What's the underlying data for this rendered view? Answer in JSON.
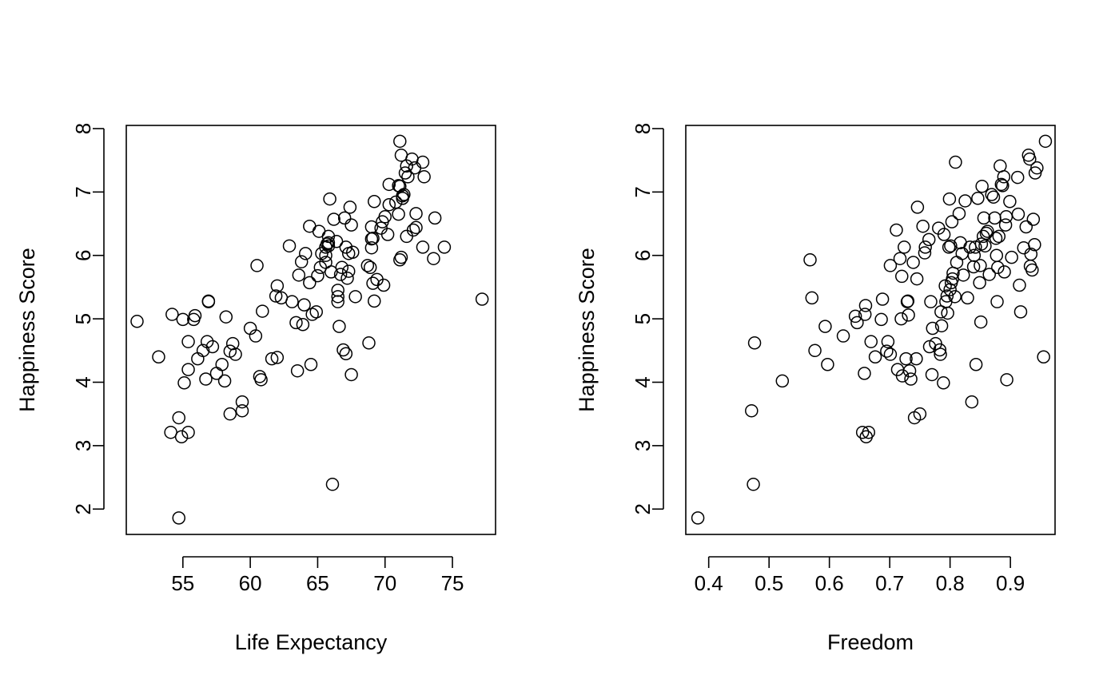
{
  "chart_data": [
    {
      "type": "scatter",
      "xlabel": "Life Expectancy",
      "ylabel": "Happiness Score",
      "xlim": [
        50.8,
        78.2
      ],
      "ylim": [
        1.6,
        8.05
      ],
      "x_ticks": [
        55,
        60,
        65,
        70,
        75
      ],
      "y_ticks": [
        2,
        3,
        4,
        5,
        6,
        7,
        8
      ],
      "x_tick_labels": [
        "55",
        "60",
        "65",
        "70",
        "75"
      ],
      "y_tick_labels": [
        "2",
        "3",
        "4",
        "5",
        "6",
        "7",
        "8"
      ],
      "grid": false,
      "points": [
        {
          "x": 51.6,
          "y": 4.96
        },
        {
          "x": 53.2,
          "y": 4.4
        },
        {
          "x": 54.2,
          "y": 5.07
        },
        {
          "x": 54.1,
          "y": 3.21
        },
        {
          "x": 54.7,
          "y": 3.44
        },
        {
          "x": 54.9,
          "y": 3.14
        },
        {
          "x": 54.7,
          "y": 1.86
        },
        {
          "x": 55.0,
          "y": 4.99
        },
        {
          "x": 55.1,
          "y": 3.99
        },
        {
          "x": 55.4,
          "y": 4.64
        },
        {
          "x": 55.4,
          "y": 3.21
        },
        {
          "x": 55.4,
          "y": 4.2
        },
        {
          "x": 55.8,
          "y": 4.99
        },
        {
          "x": 55.9,
          "y": 5.05
        },
        {
          "x": 56.1,
          "y": 4.37
        },
        {
          "x": 56.5,
          "y": 4.5
        },
        {
          "x": 56.7,
          "y": 4.05
        },
        {
          "x": 56.8,
          "y": 4.64
        },
        {
          "x": 56.9,
          "y": 5.27
        },
        {
          "x": 56.9,
          "y": 5.28
        },
        {
          "x": 57.2,
          "y": 4.56
        },
        {
          "x": 57.5,
          "y": 4.14
        },
        {
          "x": 57.9,
          "y": 4.28
        },
        {
          "x": 58.1,
          "y": 4.02
        },
        {
          "x": 58.2,
          "y": 5.03
        },
        {
          "x": 58.5,
          "y": 4.49
        },
        {
          "x": 58.5,
          "y": 3.5
        },
        {
          "x": 58.7,
          "y": 4.61
        },
        {
          "x": 58.9,
          "y": 4.44
        },
        {
          "x": 59.4,
          "y": 3.69
        },
        {
          "x": 59.4,
          "y": 3.55
        },
        {
          "x": 60.0,
          "y": 4.85
        },
        {
          "x": 60.4,
          "y": 4.73
        },
        {
          "x": 60.5,
          "y": 5.84
        },
        {
          "x": 60.7,
          "y": 4.09
        },
        {
          "x": 60.8,
          "y": 4.04
        },
        {
          "x": 60.9,
          "y": 5.12
        },
        {
          "x": 61.6,
          "y": 4.37
        },
        {
          "x": 61.9,
          "y": 5.36
        },
        {
          "x": 62.0,
          "y": 4.39
        },
        {
          "x": 62.0,
          "y": 5.52
        },
        {
          "x": 62.3,
          "y": 5.33
        },
        {
          "x": 62.9,
          "y": 6.15
        },
        {
          "x": 63.1,
          "y": 5.27
        },
        {
          "x": 63.4,
          "y": 4.94
        },
        {
          "x": 63.5,
          "y": 4.18
        },
        {
          "x": 63.6,
          "y": 5.69
        },
        {
          "x": 63.8,
          "y": 5.9
        },
        {
          "x": 63.9,
          "y": 4.91
        },
        {
          "x": 64.0,
          "y": 5.22
        },
        {
          "x": 64.1,
          "y": 6.03
        },
        {
          "x": 64.4,
          "y": 6.46
        },
        {
          "x": 64.4,
          "y": 5.57
        },
        {
          "x": 64.5,
          "y": 4.28
        },
        {
          "x": 64.6,
          "y": 5.07
        },
        {
          "x": 64.9,
          "y": 5.11
        },
        {
          "x": 65.0,
          "y": 5.68
        },
        {
          "x": 65.1,
          "y": 6.38
        },
        {
          "x": 65.2,
          "y": 5.81
        },
        {
          "x": 65.3,
          "y": 6.03
        },
        {
          "x": 65.6,
          "y": 5.89
        },
        {
          "x": 65.6,
          "y": 6.13
        },
        {
          "x": 65.6,
          "y": 6.0
        },
        {
          "x": 65.7,
          "y": 6.18
        },
        {
          "x": 65.8,
          "y": 6.3
        },
        {
          "x": 65.8,
          "y": 6.2
        },
        {
          "x": 65.8,
          "y": 6.15
        },
        {
          "x": 65.9,
          "y": 6.89
        },
        {
          "x": 66.0,
          "y": 5.74
        },
        {
          "x": 66.1,
          "y": 2.39
        },
        {
          "x": 66.2,
          "y": 6.57
        },
        {
          "x": 66.4,
          "y": 6.22
        },
        {
          "x": 66.5,
          "y": 5.45
        },
        {
          "x": 66.5,
          "y": 5.27
        },
        {
          "x": 66.5,
          "y": 5.35
        },
        {
          "x": 66.6,
          "y": 4.88
        },
        {
          "x": 66.7,
          "y": 5.7
        },
        {
          "x": 66.8,
          "y": 5.81
        },
        {
          "x": 66.9,
          "y": 4.51
        },
        {
          "x": 67.0,
          "y": 6.59
        },
        {
          "x": 67.1,
          "y": 4.45
        },
        {
          "x": 67.1,
          "y": 6.13
        },
        {
          "x": 67.2,
          "y": 5.64
        },
        {
          "x": 67.3,
          "y": 5.75
        },
        {
          "x": 67.3,
          "y": 6.03
        },
        {
          "x": 67.4,
          "y": 6.76
        },
        {
          "x": 67.5,
          "y": 6.48
        },
        {
          "x": 67.5,
          "y": 4.12
        },
        {
          "x": 67.6,
          "y": 6.05
        },
        {
          "x": 67.8,
          "y": 5.35
        },
        {
          "x": 68.7,
          "y": 5.84
        },
        {
          "x": 68.8,
          "y": 4.62
        },
        {
          "x": 68.9,
          "y": 5.81
        },
        {
          "x": 69.0,
          "y": 6.45
        },
        {
          "x": 69.0,
          "y": 6.26
        },
        {
          "x": 69.0,
          "y": 6.12
        },
        {
          "x": 69.1,
          "y": 6.27
        },
        {
          "x": 69.1,
          "y": 5.56
        },
        {
          "x": 69.2,
          "y": 5.28
        },
        {
          "x": 69.2,
          "y": 6.85
        },
        {
          "x": 69.4,
          "y": 5.62
        },
        {
          "x": 69.7,
          "y": 6.43
        },
        {
          "x": 69.8,
          "y": 6.53
        },
        {
          "x": 69.9,
          "y": 5.53
        },
        {
          "x": 70.0,
          "y": 6.61
        },
        {
          "x": 70.2,
          "y": 6.33
        },
        {
          "x": 70.3,
          "y": 6.8
        },
        {
          "x": 70.3,
          "y": 7.12
        },
        {
          "x": 70.8,
          "y": 6.84
        },
        {
          "x": 71.0,
          "y": 7.1
        },
        {
          "x": 71.0,
          "y": 6.65
        },
        {
          "x": 71.1,
          "y": 7.09
        },
        {
          "x": 71.1,
          "y": 7.8
        },
        {
          "x": 71.1,
          "y": 5.93
        },
        {
          "x": 71.2,
          "y": 5.97
        },
        {
          "x": 71.2,
          "y": 7.58
        },
        {
          "x": 71.3,
          "y": 6.94
        },
        {
          "x": 71.3,
          "y": 6.9
        },
        {
          "x": 71.4,
          "y": 6.96
        },
        {
          "x": 71.5,
          "y": 7.3
        },
        {
          "x": 71.6,
          "y": 7.41
        },
        {
          "x": 71.6,
          "y": 6.3
        },
        {
          "x": 71.7,
          "y": 7.24
        },
        {
          "x": 72.0,
          "y": 7.52
        },
        {
          "x": 72.1,
          "y": 6.4
        },
        {
          "x": 72.2,
          "y": 7.38
        },
        {
          "x": 72.3,
          "y": 6.66
        },
        {
          "x": 72.3,
          "y": 6.44
        },
        {
          "x": 72.8,
          "y": 7.47
        },
        {
          "x": 72.8,
          "y": 6.13
        },
        {
          "x": 72.9,
          "y": 7.24
        },
        {
          "x": 73.6,
          "y": 5.95
        },
        {
          "x": 73.7,
          "y": 6.59
        },
        {
          "x": 74.4,
          "y": 6.13
        },
        {
          "x": 77.2,
          "y": 5.31
        }
      ]
    },
    {
      "type": "scatter",
      "xlabel": "Freedom",
      "ylabel": "Happiness Score",
      "xlim": [
        0.362,
        0.974
      ],
      "ylim": [
        1.6,
        8.05
      ],
      "x_ticks": [
        0.4,
        0.5,
        0.6,
        0.7,
        0.8,
        0.9
      ],
      "y_ticks": [
        2,
        3,
        4,
        5,
        6,
        7,
        8
      ],
      "x_tick_labels": [
        "0.4",
        "0.5",
        "0.6",
        "0.7",
        "0.8",
        "0.9"
      ],
      "y_tick_labels": [
        "2",
        "3",
        "4",
        "5",
        "6",
        "7",
        "8"
      ],
      "grid": false,
      "points": [
        {
          "x": 0.382,
          "y": 1.86
        },
        {
          "x": 0.471,
          "y": 3.55
        },
        {
          "x": 0.474,
          "y": 2.39
        },
        {
          "x": 0.476,
          "y": 4.62
        },
        {
          "x": 0.522,
          "y": 4.02
        },
        {
          "x": 0.568,
          "y": 5.93
        },
        {
          "x": 0.571,
          "y": 5.33
        },
        {
          "x": 0.576,
          "y": 4.5
        },
        {
          "x": 0.593,
          "y": 4.88
        },
        {
          "x": 0.597,
          "y": 4.28
        },
        {
          "x": 0.623,
          "y": 4.73
        },
        {
          "x": 0.643,
          "y": 5.04
        },
        {
          "x": 0.646,
          "y": 4.94
        },
        {
          "x": 0.655,
          "y": 3.21
        },
        {
          "x": 0.658,
          "y": 4.14
        },
        {
          "x": 0.659,
          "y": 5.07
        },
        {
          "x": 0.66,
          "y": 5.21
        },
        {
          "x": 0.661,
          "y": 3.14
        },
        {
          "x": 0.665,
          "y": 3.21
        },
        {
          "x": 0.669,
          "y": 4.64
        },
        {
          "x": 0.676,
          "y": 4.4
        },
        {
          "x": 0.686,
          "y": 4.99
        },
        {
          "x": 0.688,
          "y": 5.31
        },
        {
          "x": 0.695,
          "y": 4.49
        },
        {
          "x": 0.697,
          "y": 4.64
        },
        {
          "x": 0.701,
          "y": 4.44
        },
        {
          "x": 0.701,
          "y": 5.84
        },
        {
          "x": 0.711,
          "y": 6.4
        },
        {
          "x": 0.713,
          "y": 4.2
        },
        {
          "x": 0.717,
          "y": 5.95
        },
        {
          "x": 0.719,
          "y": 5.0
        },
        {
          "x": 0.72,
          "y": 5.67
        },
        {
          "x": 0.721,
          "y": 4.1
        },
        {
          "x": 0.724,
          "y": 6.13
        },
        {
          "x": 0.727,
          "y": 4.37
        },
        {
          "x": 0.729,
          "y": 5.27
        },
        {
          "x": 0.73,
          "y": 5.28
        },
        {
          "x": 0.731,
          "y": 5.06
        },
        {
          "x": 0.733,
          "y": 4.18
        },
        {
          "x": 0.735,
          "y": 4.05
        },
        {
          "x": 0.739,
          "y": 5.89
        },
        {
          "x": 0.741,
          "y": 3.44
        },
        {
          "x": 0.744,
          "y": 4.37
        },
        {
          "x": 0.745,
          "y": 5.63
        },
        {
          "x": 0.746,
          "y": 6.76
        },
        {
          "x": 0.75,
          "y": 3.5
        },
        {
          "x": 0.755,
          "y": 6.46
        },
        {
          "x": 0.758,
          "y": 6.04
        },
        {
          "x": 0.759,
          "y": 6.13
        },
        {
          "x": 0.765,
          "y": 6.25
        },
        {
          "x": 0.766,
          "y": 4.56
        },
        {
          "x": 0.768,
          "y": 5.27
        },
        {
          "x": 0.77,
          "y": 4.12
        },
        {
          "x": 0.771,
          "y": 4.85
        },
        {
          "x": 0.776,
          "y": 4.61
        },
        {
          "x": 0.781,
          "y": 6.43
        },
        {
          "x": 0.783,
          "y": 4.51
        },
        {
          "x": 0.784,
          "y": 4.44
        },
        {
          "x": 0.785,
          "y": 5.11
        },
        {
          "x": 0.786,
          "y": 4.89
        },
        {
          "x": 0.789,
          "y": 3.99
        },
        {
          "x": 0.79,
          "y": 6.33
        },
        {
          "x": 0.792,
          "y": 5.52
        },
        {
          "x": 0.793,
          "y": 5.27
        },
        {
          "x": 0.795,
          "y": 5.36
        },
        {
          "x": 0.796,
          "y": 5.09
        },
        {
          "x": 0.798,
          "y": 6.13
        },
        {
          "x": 0.799,
          "y": 6.89
        },
        {
          "x": 0.8,
          "y": 5.46
        },
        {
          "x": 0.801,
          "y": 6.15
        },
        {
          "x": 0.802,
          "y": 5.57
        },
        {
          "x": 0.803,
          "y": 6.53
        },
        {
          "x": 0.804,
          "y": 5.63
        },
        {
          "x": 0.805,
          "y": 5.72
        },
        {
          "x": 0.808,
          "y": 5.35
        },
        {
          "x": 0.809,
          "y": 7.47
        },
        {
          "x": 0.811,
          "y": 5.89
        },
        {
          "x": 0.815,
          "y": 6.66
        },
        {
          "x": 0.817,
          "y": 6.2
        },
        {
          "x": 0.82,
          "y": 6.03
        },
        {
          "x": 0.822,
          "y": 5.69
        },
        {
          "x": 0.825,
          "y": 6.86
        },
        {
          "x": 0.829,
          "y": 5.33
        },
        {
          "x": 0.833,
          "y": 6.13
        },
        {
          "x": 0.836,
          "y": 3.69
        },
        {
          "x": 0.839,
          "y": 5.82
        },
        {
          "x": 0.84,
          "y": 6.0
        },
        {
          "x": 0.842,
          "y": 6.13
        },
        {
          "x": 0.843,
          "y": 4.28
        },
        {
          "x": 0.846,
          "y": 6.9
        },
        {
          "x": 0.849,
          "y": 5.57
        },
        {
          "x": 0.85,
          "y": 5.84
        },
        {
          "x": 0.851,
          "y": 4.95
        },
        {
          "x": 0.852,
          "y": 6.18
        },
        {
          "x": 0.853,
          "y": 7.09
        },
        {
          "x": 0.855,
          "y": 6.3
        },
        {
          "x": 0.856,
          "y": 6.59
        },
        {
          "x": 0.858,
          "y": 6.15
        },
        {
          "x": 0.86,
          "y": 6.35
        },
        {
          "x": 0.862,
          "y": 6.38
        },
        {
          "x": 0.865,
          "y": 5.7
        },
        {
          "x": 0.869,
          "y": 6.96
        },
        {
          "x": 0.872,
          "y": 6.92
        },
        {
          "x": 0.874,
          "y": 6.59
        },
        {
          "x": 0.876,
          "y": 6.27
        },
        {
          "x": 0.877,
          "y": 6.0
        },
        {
          "x": 0.878,
          "y": 5.27
        },
        {
          "x": 0.879,
          "y": 5.81
        },
        {
          "x": 0.881,
          "y": 6.3
        },
        {
          "x": 0.883,
          "y": 7.41
        },
        {
          "x": 0.885,
          "y": 7.12
        },
        {
          "x": 0.887,
          "y": 7.1
        },
        {
          "x": 0.889,
          "y": 7.24
        },
        {
          "x": 0.89,
          "y": 5.74
        },
        {
          "x": 0.892,
          "y": 6.48
        },
        {
          "x": 0.893,
          "y": 6.61
        },
        {
          "x": 0.894,
          "y": 4.04
        },
        {
          "x": 0.899,
          "y": 6.85
        },
        {
          "x": 0.902,
          "y": 5.97
        },
        {
          "x": 0.912,
          "y": 7.23
        },
        {
          "x": 0.913,
          "y": 6.65
        },
        {
          "x": 0.915,
          "y": 5.53
        },
        {
          "x": 0.917,
          "y": 5.11
        },
        {
          "x": 0.922,
          "y": 6.12
        },
        {
          "x": 0.926,
          "y": 6.45
        },
        {
          "x": 0.93,
          "y": 7.58
        },
        {
          "x": 0.932,
          "y": 7.52
        },
        {
          "x": 0.933,
          "y": 5.83
        },
        {
          "x": 0.934,
          "y": 6.02
        },
        {
          "x": 0.936,
          "y": 5.77
        },
        {
          "x": 0.938,
          "y": 6.57
        },
        {
          "x": 0.94,
          "y": 6.17
        },
        {
          "x": 0.941,
          "y": 7.3
        },
        {
          "x": 0.944,
          "y": 7.38
        },
        {
          "x": 0.955,
          "y": 4.4
        },
        {
          "x": 0.958,
          "y": 7.8
        }
      ]
    }
  ]
}
